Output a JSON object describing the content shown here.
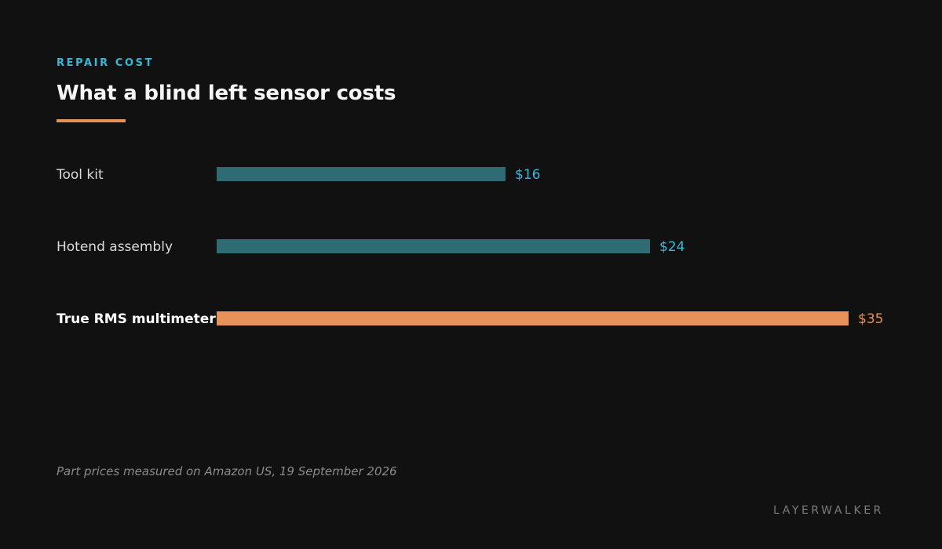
{
  "header": {
    "eyebrow": "REPAIR COST",
    "title": "What a blind left sensor costs"
  },
  "footer": {
    "note": "Part prices measured on Amazon US, 19 September 2026",
    "brand": "LAYERWALKER"
  },
  "colors": {
    "accent": "#e8925a",
    "bar_default": "#2e6b73",
    "label_default": "#39b8d8",
    "eyebrow": "#39b8d8"
  },
  "chart_data": {
    "type": "bar",
    "orientation": "horizontal",
    "categories": [
      "Tool kit",
      "Hotend assembly",
      "True RMS multimeter"
    ],
    "values": [
      16,
      24,
      35
    ],
    "value_labels": [
      "$16",
      "$24",
      "$35"
    ],
    "highlight": "True RMS multimeter",
    "title": "What a blind left sensor costs",
    "xlabel": "",
    "ylabel": "",
    "xlim": [
      0,
      35
    ],
    "grid": false
  }
}
